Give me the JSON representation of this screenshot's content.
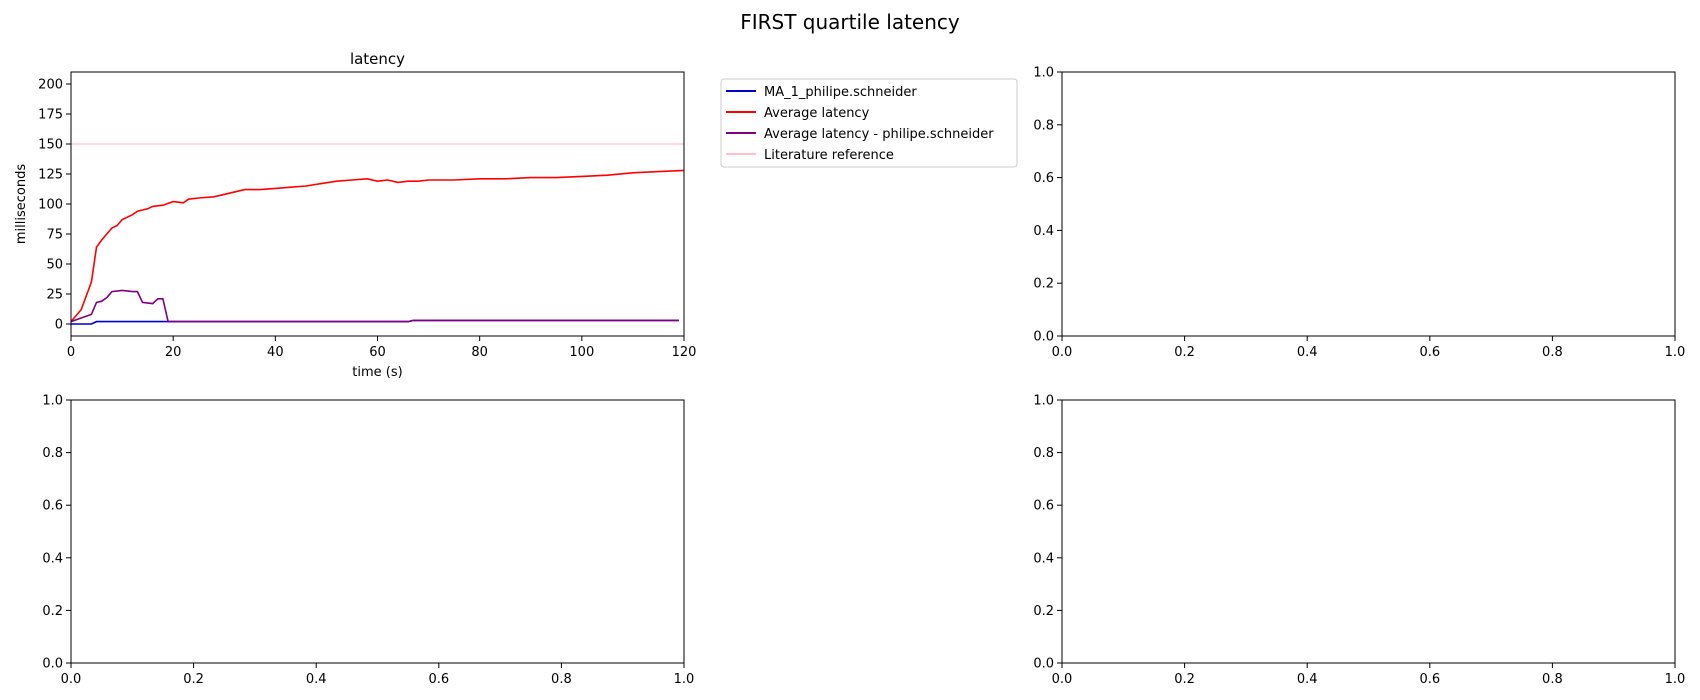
{
  "figure": {
    "suptitle": "FIRST quartile latency"
  },
  "chart_data": [
    {
      "type": "line",
      "title": "latency",
      "xlabel": "time (s)",
      "ylabel": "milliseconds",
      "xlim": [
        0,
        120
      ],
      "ylim": [
        -10,
        210
      ],
      "xticks": [
        0,
        20,
        40,
        60,
        80,
        100,
        120
      ],
      "yticks": [
        0,
        25,
        50,
        75,
        100,
        125,
        150,
        175,
        200
      ],
      "legend_position": "outside-right",
      "series": [
        {
          "name": "MA_1_philipe.schneider",
          "color": "#0000cc",
          "points": [
            [
              0,
              0
            ],
            [
              4,
              0
            ],
            [
              5,
              2
            ],
            [
              10,
              2
            ],
            [
              20,
              2
            ],
            [
              40,
              2
            ],
            [
              60,
              2
            ],
            [
              66,
              2
            ],
            [
              67,
              3
            ],
            [
              80,
              3
            ],
            [
              100,
              3
            ],
            [
              119,
              3
            ]
          ]
        },
        {
          "name": "Average latency",
          "color": "#ff0000",
          "points": [
            [
              0,
              2
            ],
            [
              2,
              12
            ],
            [
              4,
              35
            ],
            [
              5,
              64
            ],
            [
              6,
              70
            ],
            [
              7,
              75
            ],
            [
              8,
              80
            ],
            [
              9,
              82
            ],
            [
              10,
              87
            ],
            [
              12,
              91
            ],
            [
              13,
              94
            ],
            [
              15,
              96
            ],
            [
              16,
              98
            ],
            [
              18,
              99
            ],
            [
              20,
              102
            ],
            [
              22,
              101
            ],
            [
              23,
              104
            ],
            [
              25,
              105
            ],
            [
              28,
              106
            ],
            [
              31,
              109
            ],
            [
              34,
              112
            ],
            [
              37,
              112
            ],
            [
              40,
              113
            ],
            [
              43,
              114
            ],
            [
              46,
              115
            ],
            [
              49,
              117
            ],
            [
              52,
              119
            ],
            [
              55,
              120
            ],
            [
              58,
              121
            ],
            [
              60,
              119
            ],
            [
              62,
              120
            ],
            [
              64,
              118
            ],
            [
              66,
              119
            ],
            [
              68,
              119
            ],
            [
              70,
              120
            ],
            [
              75,
              120
            ],
            [
              80,
              121
            ],
            [
              85,
              121
            ],
            [
              90,
              122
            ],
            [
              95,
              122
            ],
            [
              100,
              123
            ],
            [
              105,
              124
            ],
            [
              110,
              126
            ],
            [
              115,
              127
            ],
            [
              120,
              128
            ]
          ]
        },
        {
          "name": "Average latency - philipe.schneider",
          "color": "#800080",
          "points": [
            [
              0,
              2
            ],
            [
              2,
              5
            ],
            [
              4,
              8
            ],
            [
              5,
              18
            ],
            [
              6,
              19
            ],
            [
              7,
              22
            ],
            [
              8,
              27
            ],
            [
              10,
              28
            ],
            [
              12,
              27
            ],
            [
              13,
              27
            ],
            [
              14,
              18
            ],
            [
              16,
              17
            ],
            [
              17,
              21
            ],
            [
              18,
              21
            ],
            [
              19,
              2
            ],
            [
              40,
              2
            ],
            [
              60,
              2
            ],
            [
              66,
              2
            ],
            [
              67,
              3
            ],
            [
              80,
              3
            ],
            [
              100,
              3
            ],
            [
              119,
              3
            ]
          ]
        },
        {
          "name": "Literature reference",
          "color": "#ffc0cb",
          "points": [
            [
              0,
              150
            ],
            [
              120,
              150
            ]
          ]
        }
      ]
    },
    {
      "type": "line",
      "title": "",
      "xlim": [
        0,
        1
      ],
      "ylim": [
        0,
        1
      ],
      "xticks": [
        "0.0",
        "0.2",
        "0.4",
        "0.6",
        "0.8",
        "1.0"
      ],
      "yticks": [
        "0.0",
        "0.2",
        "0.4",
        "0.6",
        "0.8",
        "1.0"
      ],
      "series": []
    },
    {
      "type": "line",
      "title": "",
      "xlim": [
        0,
        1
      ],
      "ylim": [
        0,
        1
      ],
      "xticks": [
        "0.0",
        "0.2",
        "0.4",
        "0.6",
        "0.8",
        "1.0"
      ],
      "yticks": [
        "0.0",
        "0.2",
        "0.4",
        "0.6",
        "0.8",
        "1.0"
      ],
      "series": []
    },
    {
      "type": "line",
      "title": "",
      "xlim": [
        0,
        1
      ],
      "ylim": [
        0,
        1
      ],
      "xticks": [
        "0.0",
        "0.2",
        "0.4",
        "0.6",
        "0.8",
        "1.0"
      ],
      "yticks": [
        "0.0",
        "0.2",
        "0.4",
        "0.6",
        "0.8",
        "1.0"
      ],
      "series": []
    }
  ]
}
